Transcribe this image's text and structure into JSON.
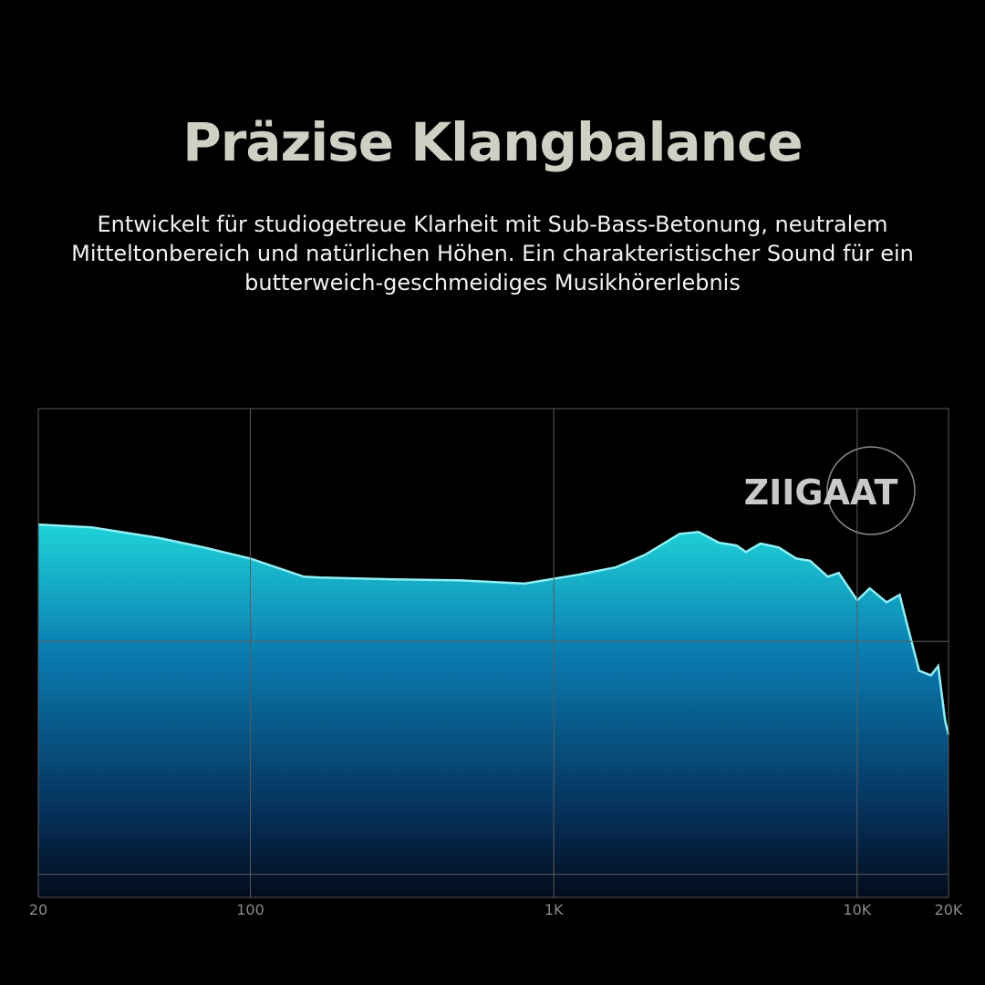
{
  "chart_data": {
    "type": "area",
    "title": "Präzise Klangbalance",
    "subtitle": "Entwickelt für studiogetreue Klarheit mit Sub-Bass-Betonung, neutralem Mitteltonbereich und natürlichen Höhen. Ein charakteristischer Sound für ein butterweich-geschmeidiges Musikhörerlebnis",
    "brand": "ZIIGAAT",
    "x": [
      20,
      30,
      50,
      70,
      100,
      150,
      170,
      300,
      500,
      800,
      1200,
      1600,
      2000,
      2600,
      3000,
      3500,
      4000,
      4300,
      4800,
      5500,
      6300,
      7000,
      8000,
      8700,
      10000,
      11000,
      12500,
      13800,
      14500,
      16000,
      17500,
      18500,
      19500,
      20000
    ],
    "values": [
      75.1,
      74.5,
      72.2,
      70.2,
      67.8,
      63.9,
      63.7,
      63.3,
      63.1,
      62.4,
      64.3,
      65.9,
      68.6,
      73.1,
      73.5,
      71.2,
      70.6,
      69.2,
      71.0,
      70.2,
      67.8,
      67.3,
      63.9,
      64.7,
      58.8,
      61.4,
      58.4,
      60.0,
      54.5,
      43.7,
      42.7,
      44.7,
      32.9,
      30.0
    ],
    "color": "#8ff0f5",
    "xscale": "log",
    "xlim": [
      20,
      20000
    ],
    "xticks": [
      20,
      100,
      {
        "value": 1000,
        "label": "1K"
      },
      {
        "value": 10000,
        "label": "10K"
      },
      {
        "value": 20000,
        "label": "20K"
      }
    ],
    "ylim": [
      -5,
      100
    ],
    "yticks": [
      0,
      50,
      100
    ],
    "grid": true
  }
}
